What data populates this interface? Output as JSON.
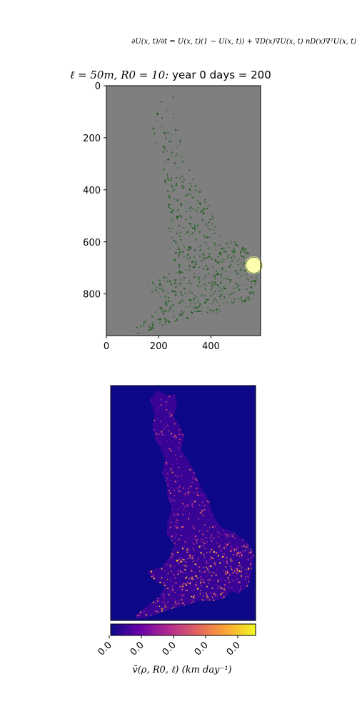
{
  "equation": "∂U(x, t)/∂t = U(x, t)(1 − U(x, t)) + ∇D(x)∇U(x, t) nD(x)∇²U(x, t)",
  "title": {
    "params": "ℓ = 50m,  R0 = 10:",
    "time": "year 0 days = 200"
  },
  "colors": {
    "map_background": "#7f7f7f",
    "vegetation": "#1f5a1f",
    "infection": "#ffffb0",
    "velocity_background": "#0d0887"
  },
  "chart_data": [
    {
      "type": "heatmap",
      "name": "host-landscape-infection",
      "xlim": [
        0,
        590
      ],
      "ylim": [
        960,
        0
      ],
      "xticks": [
        "0",
        "200",
        "400"
      ],
      "yticks": [
        "0",
        "200",
        "400",
        "600",
        "800"
      ],
      "xtick_values": [
        0,
        200,
        400
      ],
      "ytick_values": [
        0,
        200,
        400,
        600,
        800
      ],
      "infection_center": [
        564,
        690
      ],
      "infection_radius": 30,
      "grid": false
    },
    {
      "type": "heatmap",
      "name": "velocity-map",
      "colormap": "plasma",
      "colorbar": {
        "ticks": [
          "0.0",
          "0.0",
          "0.0",
          "0.0",
          "0.0"
        ],
        "label": "v̄(ρ, R0, ℓ) (km day⁻¹)",
        "colors": [
          "#0d0887",
          "#6a00a8",
          "#b12a90",
          "#e16462",
          "#fca636",
          "#f0f921"
        ]
      },
      "axes_visible": false
    }
  ]
}
